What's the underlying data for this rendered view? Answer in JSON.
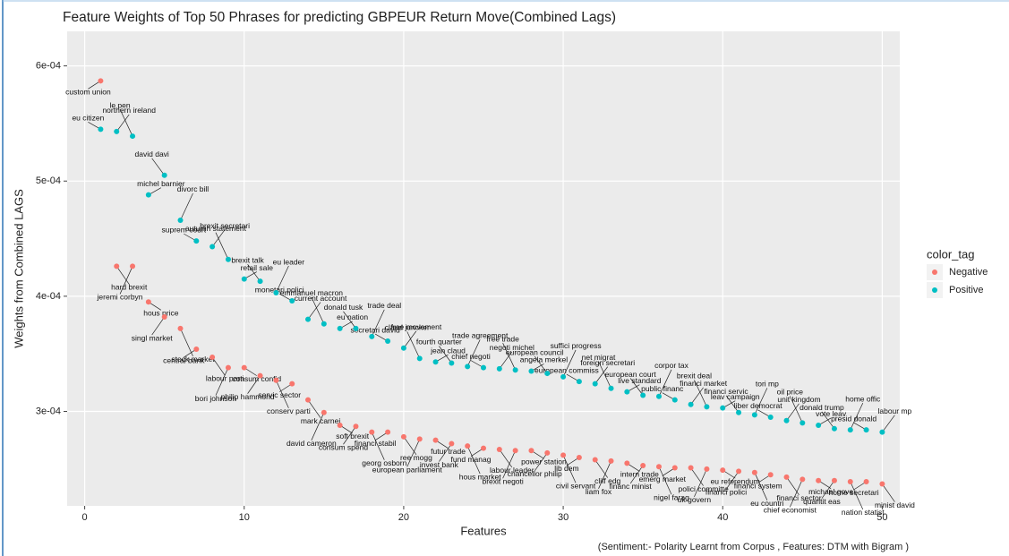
{
  "chart_data": {
    "type": "scatter",
    "title": "Feature Weights of Top 50 Phrases for predicting GBPEUR Return Move(Combined Lags)",
    "x_label": "Features",
    "y_label": "Weights from Combined LAGS",
    "caption": "(Sentiment:- Polarity Learnt from Corpus , Features: DTM with Bigram )",
    "legend_title": "color_tag",
    "legend_position": "right",
    "grid": true,
    "xlim": [
      -1.1,
      51.1
    ],
    "ylim": [
      0.000218,
      0.00063
    ],
    "xticks": [
      0,
      10,
      20,
      30,
      40,
      50
    ],
    "yticks": [
      {
        "value": 0.0003,
        "label": "3e-04"
      },
      {
        "value": 0.0004,
        "label": "4e-04"
      },
      {
        "value": 0.0005,
        "label": "5e-04"
      },
      {
        "value": 0.0006,
        "label": "6e-04"
      }
    ],
    "x": [
      1,
      2,
      3,
      4,
      5,
      6,
      7,
      8,
      9,
      10,
      11,
      12,
      13,
      14,
      15,
      16,
      17,
      18,
      19,
      20,
      21,
      22,
      23,
      24,
      25,
      26,
      27,
      28,
      29,
      30,
      31,
      32,
      33,
      34,
      35,
      36,
      37,
      38,
      39,
      40,
      41,
      42,
      43,
      44,
      45,
      46,
      47,
      48,
      49,
      50
    ],
    "series": [
      {
        "name": "Negative",
        "color": "#f8766d",
        "values": [
          0.000587,
          0.000426,
          0.000426,
          0.000395,
          0.000382,
          0.000372,
          0.000354,
          0.000347,
          0.000338,
          0.000338,
          0.000331,
          0.000327,
          0.000324,
          0.00031,
          0.000299,
          0.000288,
          0.000287,
          0.000282,
          0.000282,
          0.000278,
          0.000276,
          0.000275,
          0.000272,
          0.00027,
          0.000268,
          0.000267,
          0.000266,
          0.000266,
          0.000264,
          0.000262,
          0.00026,
          0.000258,
          0.000257,
          0.000255,
          0.000253,
          0.000252,
          0.000251,
          0.000251,
          0.00025,
          0.000249,
          0.000248,
          0.000247,
          0.000245,
          0.000243,
          0.000241,
          0.00024,
          0.00024,
          0.000239,
          0.000239,
          0.000237
        ],
        "labels": [
          "custom union",
          "hard brexit",
          "jeremi corbyn",
          "hous price",
          "singl market",
          "stock market",
          "central bank",
          "labour parti",
          "bori johnson",
          "consum confid",
          "philip hammond",
          "conserv parti",
          "servic sector",
          "mark carnei",
          "david cameron",
          "soft brexit",
          "consum spend",
          "georg osborn",
          "financi stabil",
          "ree mogg",
          "european parliament",
          "futur trade",
          "invest bank",
          "hous market",
          "fund manag",
          "labour leader",
          "brexit negoti",
          "power station",
          "chancellor philip",
          "civil servant",
          "lib dem",
          "cliff edg",
          "liam fox",
          "intern trade",
          "financ minist",
          "nigel farag",
          "emerg market",
          "polici committe",
          "uk govern",
          "eu referendum",
          "financi polici",
          "eu countri",
          "financi system",
          "financi sector",
          "chief economist",
          "michael gove",
          "quantit eas",
          "nation statist",
          "home secretari",
          "minist david"
        ]
      },
      {
        "name": "Positive",
        "color": "#00bfc4",
        "values": [
          0.000545,
          0.000543,
          0.000539,
          0.000488,
          0.000505,
          0.000466,
          0.000448,
          0.000443,
          0.000432,
          0.000415,
          0.000413,
          0.000403,
          0.000396,
          0.00038,
          0.000376,
          0.000372,
          0.000372,
          0.000365,
          0.000361,
          0.000355,
          0.000346,
          0.000343,
          0.000342,
          0.000339,
          0.000338,
          0.000337,
          0.000336,
          0.000335,
          0.000333,
          0.00033,
          0.000326,
          0.000324,
          0.00032,
          0.000317,
          0.000314,
          0.000313,
          0.00031,
          0.000306,
          0.000304,
          0.000303,
          0.000299,
          0.000297,
          0.000295,
          0.000292,
          0.00029,
          0.000288,
          0.000285,
          0.000284,
          0.000284,
          0.000282
        ],
        "labels": [
          "eu citizen",
          "northern ireland",
          "le pen",
          "michel barnier",
          "david davi",
          "divorc bill",
          "suprem court",
          "brexit secretari",
          "autumn statement",
          "retail sale",
          "brexit talk",
          "eu leader",
          "monetari polici",
          "current account",
          "emmanuel macron",
          "eu nation",
          "donald tusk",
          "trade deal",
          "secretari david",
          "free movement",
          "claud juncker",
          "jean claud",
          "fourth quarter",
          "trade agreement",
          "chief negoti",
          "negoti michel",
          "free trade",
          "angela merkel",
          "european council",
          "suffici progress",
          "european commiss",
          "foreign secretari",
          "net migrat",
          "live standard",
          "european court",
          "corpor tax",
          "public financ",
          "financi market",
          "brexit deal",
          "leav campaign",
          "financi servic",
          "tori mp",
          "liber democrat",
          "unit kingdom",
          "oil price",
          "vote leav",
          "donald trump",
          "home offic",
          "presid donald",
          "labour mp"
        ]
      }
    ]
  }
}
